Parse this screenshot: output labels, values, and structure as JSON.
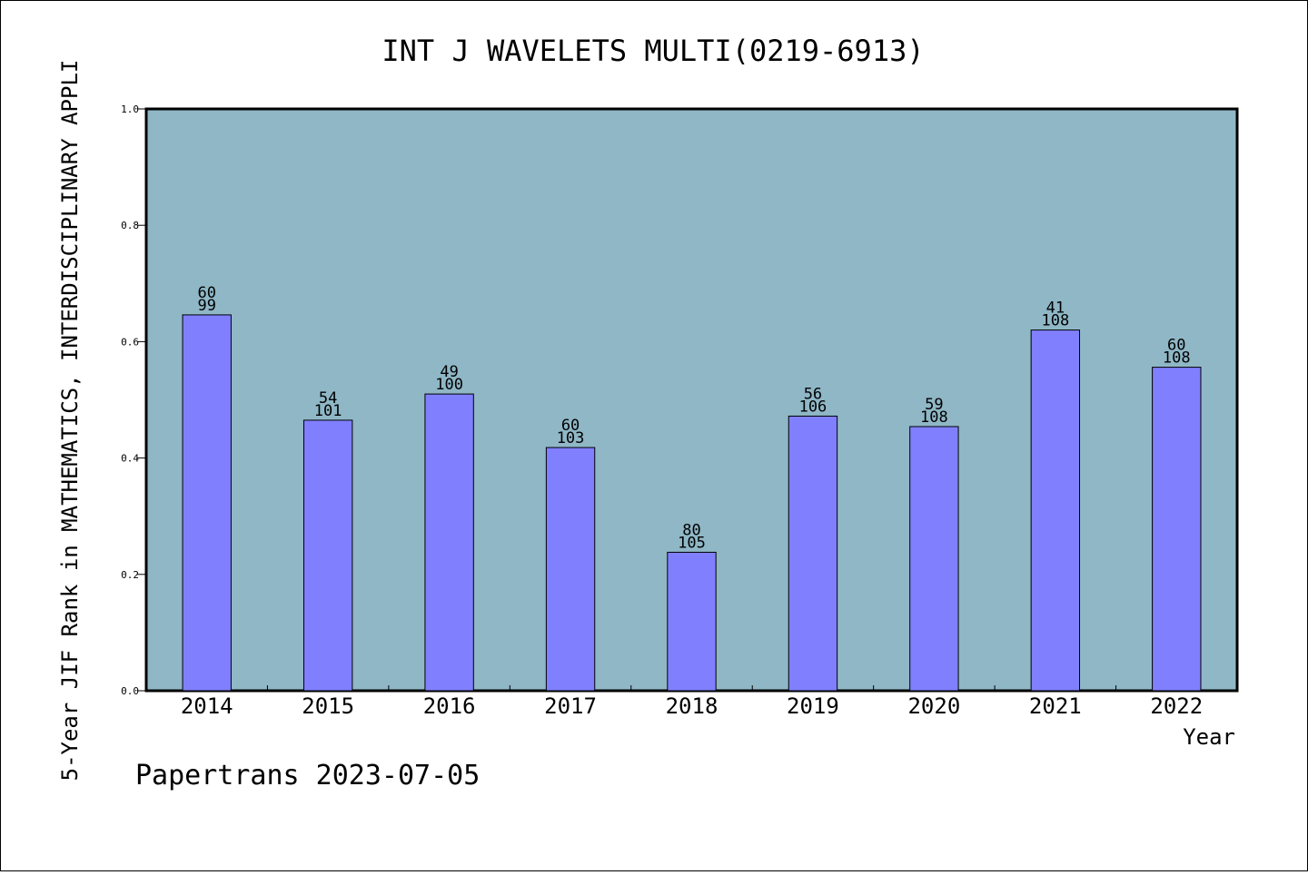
{
  "chart_data": {
    "type": "bar",
    "title": "INT J WAVELETS MULTI(0219-6913)",
    "ylabel": "5-Year JIF Rank in MATHEMATICS, INTERDISCIPLINARY APPLI",
    "xlabel": "Year",
    "footer": "Papertrans 2023-07-05",
    "categories": [
      "2014",
      "2015",
      "2016",
      "2017",
      "2018",
      "2019",
      "2020",
      "2021",
      "2022"
    ],
    "values": [
      0.646,
      0.465,
      0.51,
      0.418,
      0.238,
      0.472,
      0.454,
      0.62,
      0.556
    ],
    "labels_top": [
      "60",
      "54",
      "49",
      "60",
      "80",
      "56",
      "59",
      "41",
      "60"
    ],
    "labels_bottom": [
      "99",
      "101",
      "100",
      "103",
      "105",
      "106",
      "108",
      "108",
      "108"
    ],
    "ylim": [
      0,
      1.0
    ],
    "yticks": [
      "0.0",
      "0.2",
      "0.4",
      "0.6",
      "0.8",
      "1.0"
    ],
    "grid": false,
    "colors": {
      "plot_background": "#8fb7c6",
      "bar_fill": "#8080ff",
      "bar_stroke": "#000000"
    }
  }
}
